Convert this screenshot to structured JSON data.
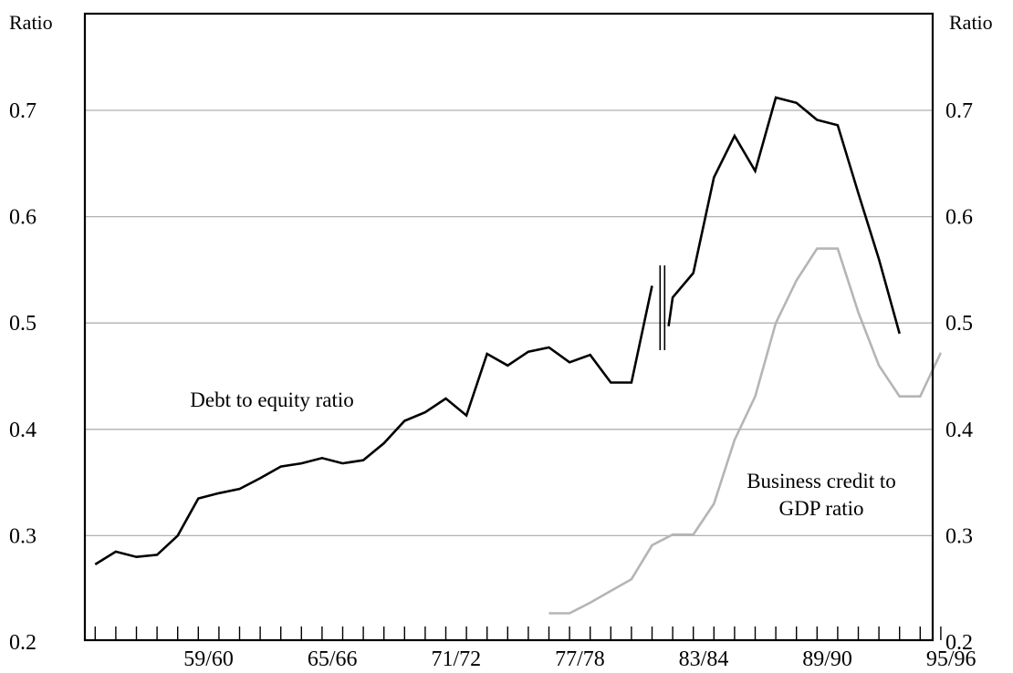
{
  "chart_data": {
    "type": "line",
    "title": "",
    "y_unit_left": "Ratio",
    "y_unit_right": "Ratio",
    "ylim": [
      0.2,
      0.7
    ],
    "y_ticks": [
      "0.2",
      "0.3",
      "0.4",
      "0.5",
      "0.6",
      "0.7"
    ],
    "x_start_year": 1954,
    "x_end_year": 1995,
    "x_tick_labels": [
      {
        "label": "59/60",
        "year": 1959
      },
      {
        "label": "65/66",
        "year": 1965
      },
      {
        "label": "71/72",
        "year": 1971
      },
      {
        "label": "77/78",
        "year": 1977
      },
      {
        "label": "83/84",
        "year": 1983
      },
      {
        "label": "89/90",
        "year": 1989
      },
      {
        "label": "95/96",
        "year": 1995
      }
    ],
    "grid": true,
    "break_at_year": 1981.5,
    "series": [
      {
        "name": "Debt to equity ratio",
        "color": "#000000",
        "segments": [
          {
            "x": [
              1954,
              1955,
              1956,
              1957,
              1958,
              1959,
              1960,
              1961,
              1962,
              1963,
              1964,
              1965,
              1966,
              1967,
              1968,
              1969,
              1970,
              1971,
              1972,
              1973,
              1974,
              1975,
              1976,
              1977,
              1978,
              1979,
              1980,
              1981
            ],
            "y": [
              0.273,
              0.285,
              0.28,
              0.282,
              0.3,
              0.335,
              0.34,
              0.344,
              0.354,
              0.365,
              0.368,
              0.373,
              0.368,
              0.371,
              0.387,
              0.408,
              0.416,
              0.429,
              0.413,
              0.471,
              0.46,
              0.473,
              0.477,
              0.463,
              0.47,
              0.444,
              0.444,
              0.535
            ]
          },
          {
            "x": [
              1981.8,
              1982,
              1983,
              1984,
              1985,
              1986,
              1987,
              1988,
              1989,
              1990,
              1991,
              1992,
              1993
            ],
            "y": [
              0.497,
              0.524,
              0.547,
              0.637,
              0.676,
              0.643,
              0.712,
              0.707,
              0.691,
              0.686,
              0.622,
              0.56,
              0.49
            ]
          }
        ]
      },
      {
        "name": "Business credit to GDP ratio",
        "color": "#b5b5b5",
        "segments": [
          {
            "x": [
              1976,
              1977,
              1978,
              1979,
              1980,
              1981,
              1982,
              1983,
              1984,
              1985,
              1986,
              1987,
              1988,
              1989,
              1990,
              1991,
              1992,
              1993,
              1994,
              1995
            ],
            "y": [
              0.227,
              0.227,
              0.237,
              0.248,
              0.259,
              0.291,
              0.301,
              0.301,
              0.33,
              0.39,
              0.431,
              0.5,
              0.54,
              0.57,
              0.57,
              0.51,
              0.46,
              0.431,
              0.431,
              0.472
            ]
          }
        ]
      }
    ],
    "annotations": [
      {
        "lines": [
          "Debt to equity ratio"
        ],
        "series": 0
      },
      {
        "lines": [
          "Business credit to",
          "GDP ratio"
        ],
        "series": 1
      }
    ]
  }
}
